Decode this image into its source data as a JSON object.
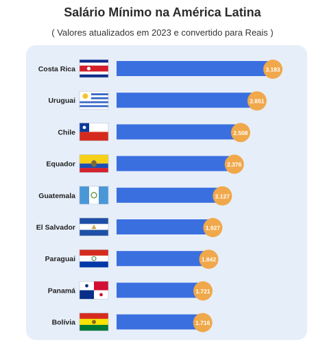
{
  "header": {
    "title": "Salário Mínimo na América Latina",
    "subtitle": "( Valores atualizados em 2023 e convertido para Reais )"
  },
  "colors": {
    "bar": "#3a6fe0",
    "badge": "#f0a84a",
    "badge_text": "#ffffff",
    "panel": "#e6eef9"
  },
  "chart_data": {
    "type": "bar",
    "orientation": "horizontal",
    "title": "Salário Mínimo na América Latina",
    "subtitle": "( Valores atualizados em 2023 e convertido para Reais )",
    "categories": [
      "Costa Rica",
      "Uruguai",
      "Chile",
      "Equador",
      "Guatemala",
      "El Salvador",
      "Paraguai",
      "Panamá",
      "Bolívia"
    ],
    "values": [
      3183,
      2851,
      2508,
      2376,
      2127,
      1927,
      1842,
      1721,
      1716
    ],
    "data_labels": [
      "3.183",
      "2.851",
      "2.508",
      "2.376",
      "2.127",
      "1.927",
      "1.842",
      "1.721",
      "1.716"
    ],
    "flags": [
      "costa-rica-flag-icon",
      "uruguay-flag-icon",
      "chile-flag-icon",
      "ecuador-flag-icon",
      "guatemala-flag-icon",
      "el-salvador-flag-icon",
      "paraguay-flag-icon",
      "panama-flag-icon",
      "bolivia-flag-icon"
    ],
    "xlim": [
      0,
      3183
    ],
    "grid": false,
    "legend": "none"
  }
}
